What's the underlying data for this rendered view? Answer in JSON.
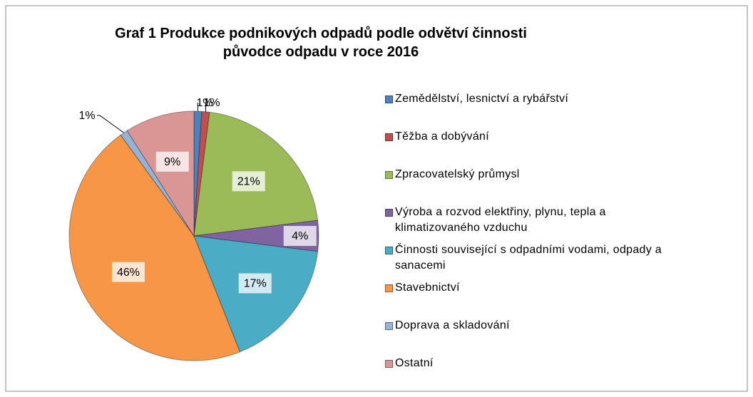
{
  "chart_data": {
    "type": "pie",
    "title": "Graf 1 Produkce podnikových odpadů podle odvětví činnosti původce odpadu v roce 2016",
    "categories": [
      "Zemědělství, lesnictví a rybářství",
      "Těžba a dobývání",
      "Zpracovatelský průmysl",
      "Výroba a rozvod elektřiny, plynu, tepla a klimatizovaného vzduchu",
      "Činnosti související s odpadními vodami, odpady a sanacemi",
      "Stavebnictví",
      "Doprava a skladování",
      "Ostatní"
    ],
    "values": [
      1,
      1,
      21,
      4,
      17,
      46,
      1,
      9
    ],
    "value_labels": [
      "1%",
      "1%",
      "21%",
      "4%",
      "17%",
      "46%",
      "1%",
      "9%"
    ],
    "colors": [
      "#4f81bd",
      "#c0504d",
      "#9bbb59",
      "#8064a2",
      "#4bacc6",
      "#f79646",
      "#95b3d7",
      "#d99694"
    ],
    "legend": "right"
  }
}
